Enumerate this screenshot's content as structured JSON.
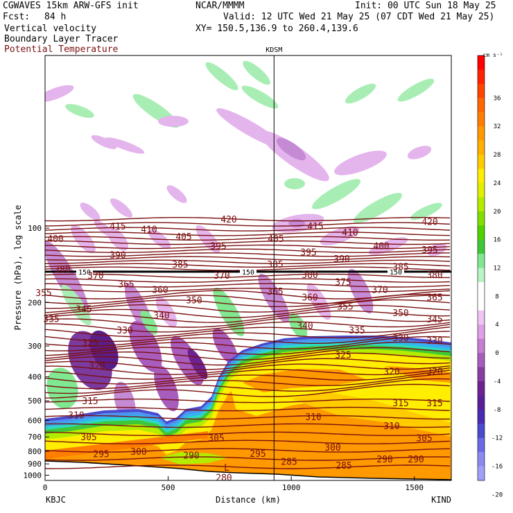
{
  "header": {
    "model": "CGWAVES 15km ARW-GFS init",
    "fcst_label": "Fcst:",
    "fcst_value": "84 h",
    "center": "NCAR/MMMM",
    "init": "Init: 00 UTC Sun 18 May 25",
    "valid": "Valid: 12 UTC Wed 21 May 25 (07 CDT Wed 21 May 25)",
    "xy": "XY= 150.5,136.9 to 260.4,139.6",
    "fields": [
      "Vertical velocity",
      "Boundary Layer Tracer",
      "Potential Temperature"
    ]
  },
  "chart_data": {
    "type": "heatmap",
    "title": "",
    "xlabel": "Distance (km)",
    "ylabel": "Pressure (hPa), log scale",
    "xlim": [
      0,
      1650
    ],
    "ylim": [
      1050,
      20
    ],
    "y_scale": "log",
    "x_ticks": [
      0,
      500,
      1000,
      1500
    ],
    "y_ticks": [
      100,
      200,
      300,
      400,
      500,
      600,
      700,
      800,
      900,
      1000
    ],
    "section_start": "KBJC",
    "section_end": "KIND",
    "marker_station": "KDSM",
    "marker_distance_km": 930,
    "tropopause_level_hPa": 150,
    "colorbar": {
      "unit": "cm s⁻¹",
      "ticks": [
        36,
        32,
        28,
        24,
        20,
        16,
        12,
        8,
        4,
        0,
        -4,
        -8,
        -12,
        -16,
        -20
      ],
      "colors": [
        "#ff0000",
        "#ff2200",
        "#ff4400",
        "#ff6600",
        "#ff7d00",
        "#ff9900",
        "#ffb000",
        "#ffcc00",
        "#ffee00",
        "#e0f000",
        "#b4ec00",
        "#7fe000",
        "#4fd200",
        "#3ec838",
        "#80e890",
        "#b8f4c4",
        "#ffffff",
        "#ffffff",
        "#f0c4f4",
        "#e0a0e8",
        "#c87cd4",
        "#a85cbc",
        "#8a3ca2",
        "#6e2292",
        "#5a1e98",
        "#4a2ab0",
        "#4a4acc",
        "#6a6ae4",
        "#8a8af0",
        "#a0a0f8"
      ]
    },
    "theta_labels": [
      {
        "v": "420",
        "x": 330,
        "p": 92
      },
      {
        "v": "415",
        "x": 170,
        "p": 98
      },
      {
        "v": "415",
        "x": 455,
        "p": 98
      },
      {
        "v": "410",
        "x": 215,
        "p": 101
      },
      {
        "v": "410",
        "x": 505,
        "p": 104
      },
      {
        "v": "420",
        "x": 620,
        "p": 94
      },
      {
        "v": "400",
        "x": 80,
        "p": 110
      },
      {
        "v": "405",
        "x": 265,
        "p": 108
      },
      {
        "v": "405",
        "x": 398,
        "p": 110
      },
      {
        "v": "395",
        "x": 315,
        "p": 118
      },
      {
        "v": "395",
        "x": 445,
        "p": 125
      },
      {
        "v": "400",
        "x": 550,
        "p": 118
      },
      {
        "v": "395",
        "x": 620,
        "p": 122
      },
      {
        "v": "390",
        "x": 170,
        "p": 128
      },
      {
        "v": "390",
        "x": 493,
        "p": 133
      },
      {
        "v": "385",
        "x": 260,
        "p": 140
      },
      {
        "v": "385",
        "x": 397,
        "p": 140
      },
      {
        "v": "385",
        "x": 578,
        "p": 143
      },
      {
        "v": "380",
        "x": 90,
        "p": 147
      },
      {
        "v": "370",
        "x": 138,
        "p": 155
      },
      {
        "v": "370",
        "x": 320,
        "p": 155
      },
      {
        "v": "380",
        "x": 447,
        "p": 154
      },
      {
        "v": "375",
        "x": 495,
        "p": 165
      },
      {
        "v": "380",
        "x": 627,
        "p": 154
      },
      {
        "v": "365",
        "x": 182,
        "p": 168
      },
      {
        "v": "360",
        "x": 231,
        "p": 177
      },
      {
        "v": "365",
        "x": 397,
        "p": 180
      },
      {
        "v": "360",
        "x": 447,
        "p": 190
      },
      {
        "v": "370",
        "x": 548,
        "p": 177
      },
      {
        "v": "365",
        "x": 627,
        "p": 190
      },
      {
        "v": "355",
        "x": 63,
        "p": 182
      },
      {
        "v": "350",
        "x": 280,
        "p": 195
      },
      {
        "v": "355",
        "x": 498,
        "p": 207
      },
      {
        "v": "345",
        "x": 121,
        "p": 212
      },
      {
        "v": "340",
        "x": 233,
        "p": 225
      },
      {
        "v": "350",
        "x": 578,
        "p": 220
      },
      {
        "v": "345",
        "x": 627,
        "p": 233
      },
      {
        "v": "335",
        "x": 74,
        "p": 232
      },
      {
        "v": "330",
        "x": 180,
        "p": 258
      },
      {
        "v": "340",
        "x": 440,
        "p": 248
      },
      {
        "v": "335",
        "x": 515,
        "p": 258
      },
      {
        "v": "330",
        "x": 578,
        "p": 277
      },
      {
        "v": "330",
        "x": 627,
        "p": 285
      },
      {
        "v": "325",
        "x": 130,
        "p": 290
      },
      {
        "v": "325",
        "x": 495,
        "p": 325
      },
      {
        "v": "320",
        "x": 140,
        "p": 360
      },
      {
        "v": "320",
        "x": 565,
        "p": 380
      },
      {
        "v": "320",
        "x": 627,
        "p": 380
      },
      {
        "v": "315",
        "x": 130,
        "p": 500
      },
      {
        "v": "315",
        "x": 578,
        "p": 510
      },
      {
        "v": "315",
        "x": 627,
        "p": 510
      },
      {
        "v": "310",
        "x": 110,
        "p": 570
      },
      {
        "v": "310",
        "x": 452,
        "p": 580
      },
      {
        "v": "310",
        "x": 565,
        "p": 630
      },
      {
        "v": "305",
        "x": 128,
        "p": 700
      },
      {
        "v": "305",
        "x": 312,
        "p": 705
      },
      {
        "v": "305",
        "x": 612,
        "p": 705
      },
      {
        "v": "300",
        "x": 200,
        "p": 800
      },
      {
        "v": "300",
        "x": 480,
        "p": 770
      },
      {
        "v": "295",
        "x": 146,
        "p": 820
      },
      {
        "v": "295",
        "x": 372,
        "p": 815
      },
      {
        "v": "290",
        "x": 276,
        "p": 830
      },
      {
        "v": "290",
        "x": 555,
        "p": 860
      },
      {
        "v": "290",
        "x": 600,
        "p": 860
      },
      {
        "v": "285",
        "x": 417,
        "p": 880
      },
      {
        "v": "285",
        "x": 496,
        "p": 910
      },
      {
        "v": "280",
        "x": 323,
        "p": 1020
      }
    ],
    "trop_labels": [
      {
        "v": "150",
        "x": 122
      },
      {
        "v": "150",
        "x": 358
      },
      {
        "v": "150",
        "x": 571
      }
    ]
  }
}
